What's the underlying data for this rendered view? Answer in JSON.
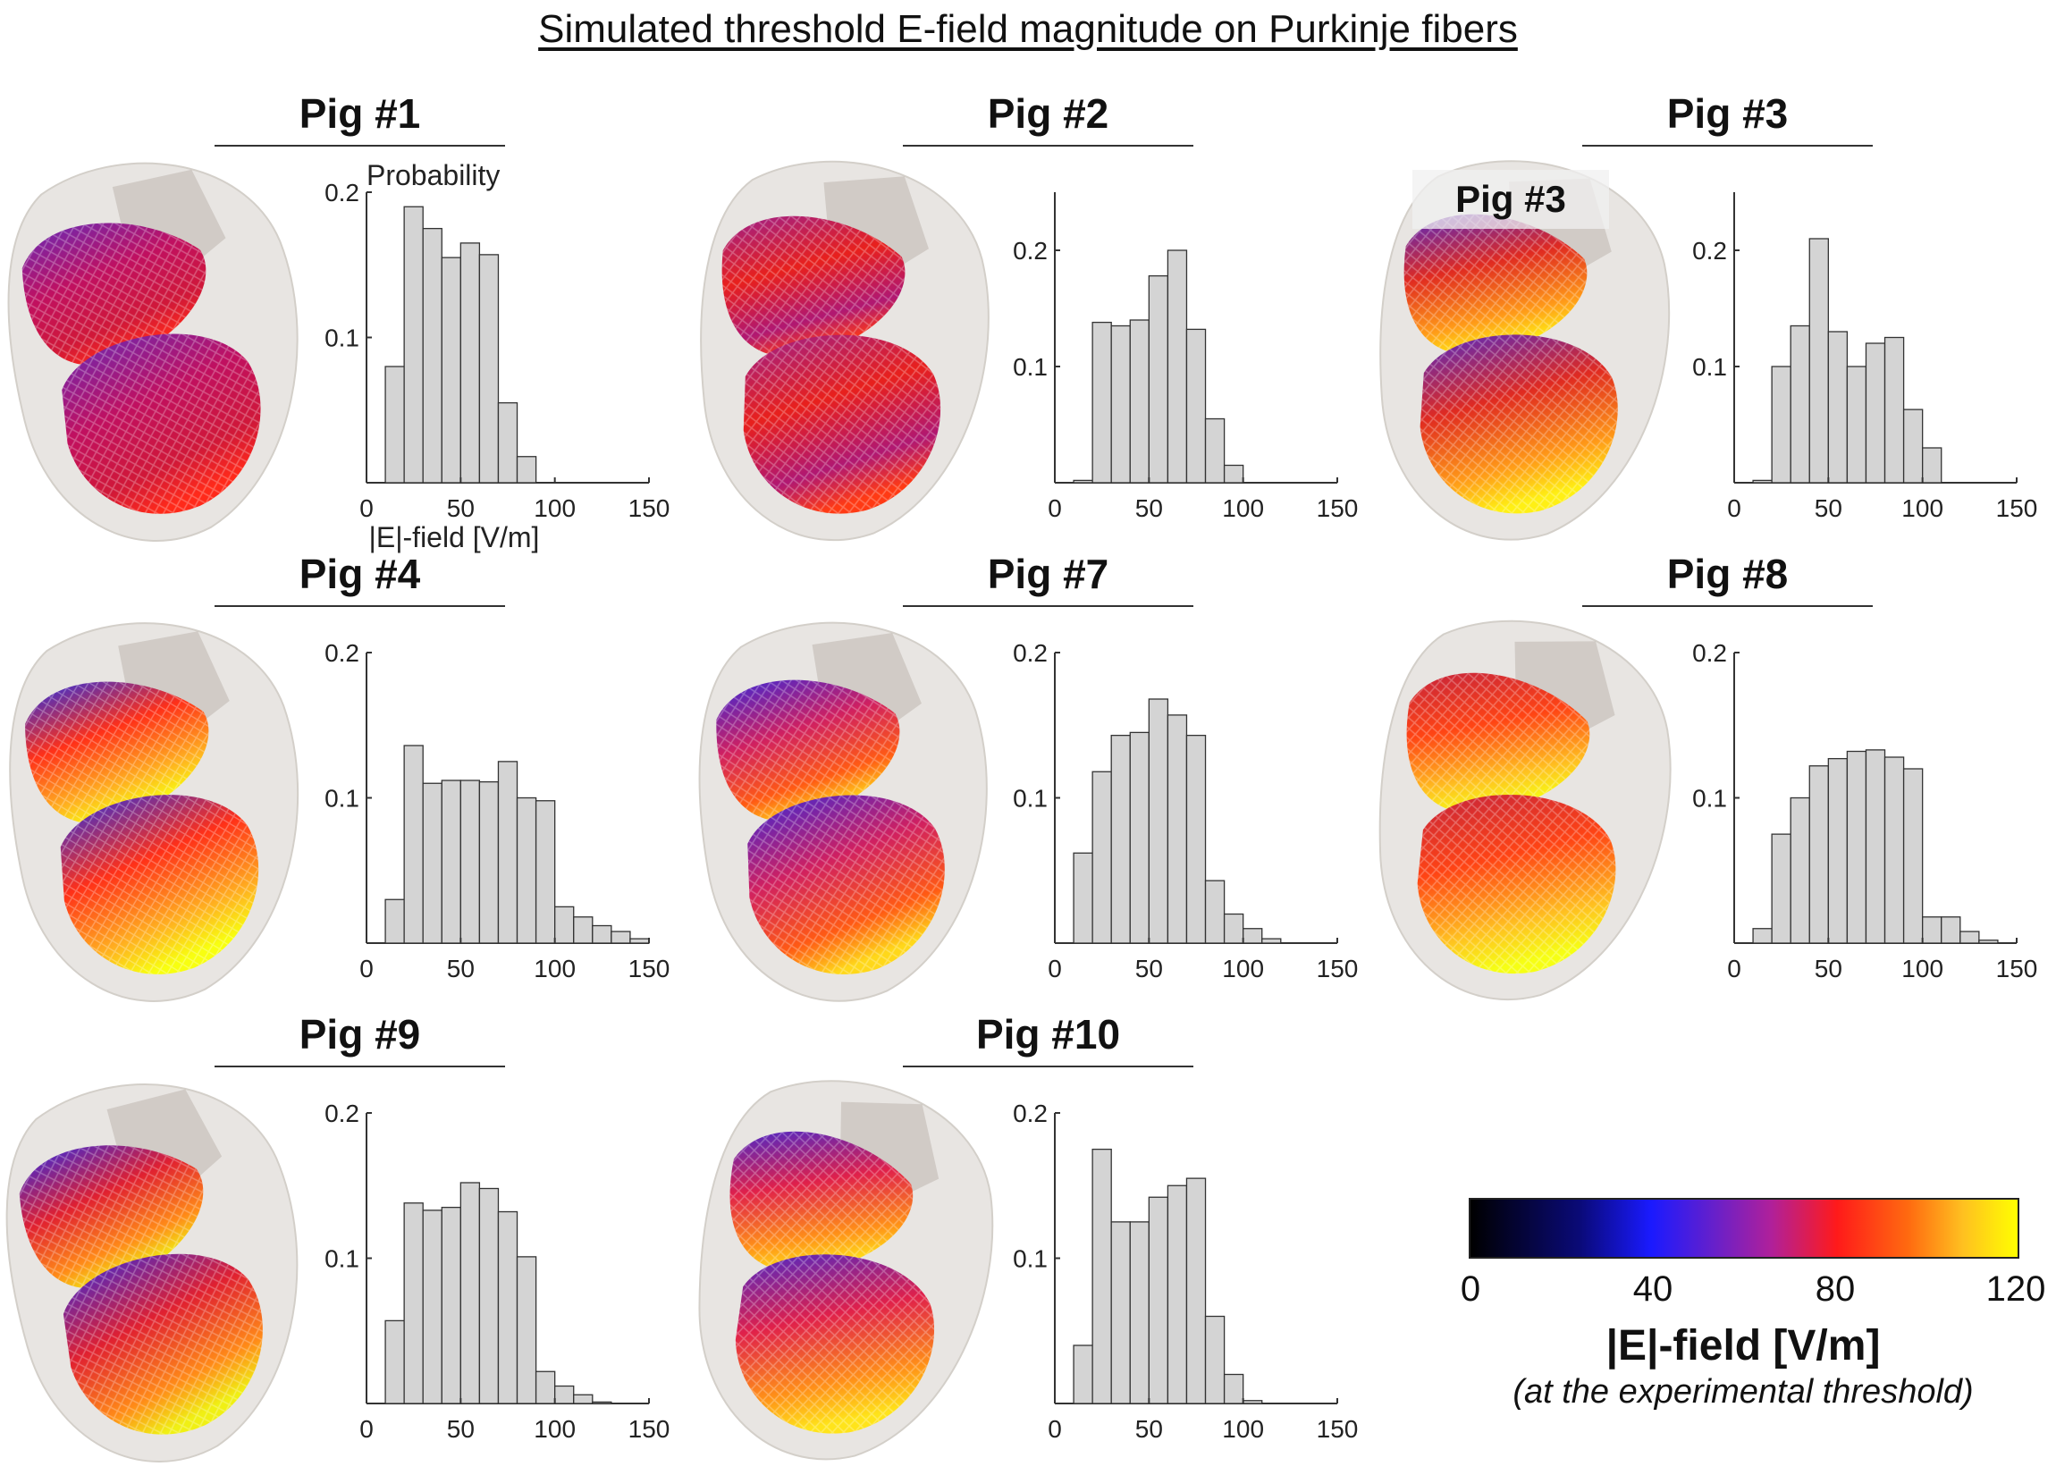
{
  "figure_title": "Simulated threshold E-field magnitude on Purkinje fibers",
  "colors": {
    "bar_fill": "#d4d4d4",
    "bar_edge": "#333333",
    "heart_shell": "#e6e3df"
  },
  "icons": [
    "heart-rendering"
  ],
  "panels": [
    {
      "title": "Pig #1",
      "inset_title": ""
    },
    {
      "title": "Pig #2",
      "inset_title": ""
    },
    {
      "title": "Pig #3",
      "inset_title": "Pig #3"
    },
    {
      "title": "Pig #4",
      "inset_title": ""
    },
    {
      "title": "Pig #7",
      "inset_title": ""
    },
    {
      "title": "Pig #8",
      "inset_title": ""
    },
    {
      "title": "Pig #9",
      "inset_title": ""
    },
    {
      "title": "Pig #10",
      "inset_title": ""
    }
  ],
  "colorbar": {
    "ticks": [
      "0",
      "40",
      "80",
      "120"
    ],
    "label": "|E|-field [V/m]",
    "sublabel": "(at the experimental threshold)"
  },
  "chart_data": [
    {
      "type": "bar",
      "title": "Pig #1",
      "ylabel": "Probability",
      "xlabel": "|E|-field [V/m]",
      "bin_width": 10,
      "bin_start": 0,
      "xlim": [
        0,
        150
      ],
      "ylim": [
        0,
        0.2
      ],
      "xticks": [
        "0",
        "50",
        "100",
        "150"
      ],
      "yticks": [
        "0.1",
        "0.2"
      ],
      "values": [
        0,
        0.08,
        0.19,
        0.175,
        0.155,
        0.165,
        0.157,
        0.055,
        0.018,
        0,
        0,
        0,
        0,
        0,
        0
      ]
    },
    {
      "type": "bar",
      "title": "Pig #2",
      "ylabel": "",
      "xlabel": "",
      "bin_width": 10,
      "bin_start": 0,
      "xlim": [
        0,
        150
      ],
      "ylim": [
        0,
        0.25
      ],
      "xticks": [
        "0",
        "50",
        "100",
        "150"
      ],
      "yticks": [
        "0.1",
        "0.2"
      ],
      "values": [
        0,
        0.002,
        0.138,
        0.135,
        0.14,
        0.178,
        0.2,
        0.132,
        0.055,
        0.015,
        0,
        0,
        0,
        0,
        0
      ]
    },
    {
      "type": "bar",
      "title": "Pig #3",
      "ylabel": "",
      "xlabel": "",
      "bin_width": 10,
      "bin_start": 0,
      "xlim": [
        0,
        150
      ],
      "ylim": [
        0,
        0.25
      ],
      "xticks": [
        "0",
        "50",
        "100",
        "150"
      ],
      "yticks": [
        "0.1",
        "0.2"
      ],
      "values": [
        0,
        0.002,
        0.1,
        0.135,
        0.21,
        0.13,
        0.1,
        0.12,
        0.125,
        0.063,
        0.03,
        0,
        0,
        0,
        0
      ]
    },
    {
      "type": "bar",
      "title": "Pig #4",
      "ylabel": "",
      "xlabel": "",
      "bin_width": 10,
      "bin_start": 0,
      "xlim": [
        0,
        150
      ],
      "ylim": [
        0,
        0.2
      ],
      "xticks": [
        "0",
        "50",
        "100",
        "150"
      ],
      "yticks": [
        "0.1",
        "0.2"
      ],
      "values": [
        0,
        0.03,
        0.136,
        0.11,
        0.112,
        0.112,
        0.111,
        0.125,
        0.1,
        0.098,
        0.025,
        0.018,
        0.012,
        0.008,
        0.003
      ]
    },
    {
      "type": "bar",
      "title": "Pig #7",
      "ylabel": "",
      "xlabel": "",
      "bin_width": 10,
      "bin_start": 0,
      "xlim": [
        0,
        150
      ],
      "ylim": [
        0,
        0.2
      ],
      "xticks": [
        "0",
        "50",
        "100",
        "150"
      ],
      "yticks": [
        "0.1",
        "0.2"
      ],
      "values": [
        0,
        0.062,
        0.118,
        0.143,
        0.145,
        0.168,
        0.157,
        0.143,
        0.043,
        0.02,
        0.01,
        0.003,
        0,
        0,
        0
      ]
    },
    {
      "type": "bar",
      "title": "Pig #8",
      "ylabel": "",
      "xlabel": "",
      "bin_width": 10,
      "bin_start": 0,
      "xlim": [
        0,
        150
      ],
      "ylim": [
        0,
        0.2
      ],
      "xticks": [
        "0",
        "50",
        "100",
        "150"
      ],
      "yticks": [
        "0.1",
        "0.2"
      ],
      "values": [
        0,
        0.01,
        0.075,
        0.1,
        0.122,
        0.127,
        0.132,
        0.133,
        0.128,
        0.12,
        0.018,
        0.018,
        0.008,
        0.002,
        0
      ]
    },
    {
      "type": "bar",
      "title": "Pig #9",
      "ylabel": "",
      "xlabel": "",
      "bin_width": 10,
      "bin_start": 0,
      "xlim": [
        0,
        150
      ],
      "ylim": [
        0,
        0.2
      ],
      "xticks": [
        "0",
        "50",
        "100",
        "150"
      ],
      "yticks": [
        "0.1",
        "0.2"
      ],
      "values": [
        0,
        0.057,
        0.138,
        0.133,
        0.135,
        0.152,
        0.148,
        0.132,
        0.101,
        0.022,
        0.012,
        0.006,
        0.001,
        0,
        0
      ]
    },
    {
      "type": "bar",
      "title": "Pig #10",
      "ylabel": "",
      "xlabel": "",
      "bin_width": 10,
      "bin_start": 0,
      "xlim": [
        0,
        150
      ],
      "ylim": [
        0,
        0.2
      ],
      "xticks": [
        "0",
        "50",
        "100",
        "150"
      ],
      "yticks": [
        "0.1",
        "0.2"
      ],
      "values": [
        0,
        0.04,
        0.175,
        0.125,
        0.125,
        0.142,
        0.15,
        0.155,
        0.06,
        0.02,
        0.002,
        0,
        0,
        0,
        0
      ]
    }
  ]
}
